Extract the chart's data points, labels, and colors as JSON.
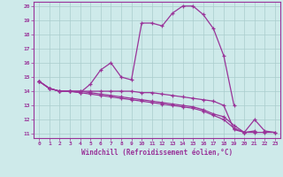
{
  "xlabel": "Windchill (Refroidissement éolien,°C)",
  "background_color": "#ceeaea",
  "grid_color": "#aacccc",
  "line_color": "#993399",
  "xlim": [
    -0.5,
    23.5
  ],
  "ylim": [
    10.7,
    20.3
  ],
  "xticks": [
    0,
    1,
    2,
    3,
    4,
    5,
    6,
    7,
    8,
    9,
    10,
    11,
    12,
    13,
    14,
    15,
    16,
    17,
    18,
    19,
    20,
    21,
    22,
    23
  ],
  "yticks": [
    11,
    12,
    13,
    14,
    15,
    16,
    17,
    18,
    19,
    20
  ],
  "series": [
    {
      "x": [
        0,
        1,
        2,
        3,
        4,
        5,
        6,
        7,
        8,
        9,
        10,
        11,
        12,
        13,
        14,
        15,
        16,
        17,
        18,
        19,
        20,
        21,
        22,
        23
      ],
      "y": [
        14.7,
        14.2,
        14.0,
        14.0,
        13.9,
        14.5,
        15.5,
        16.0,
        15.0,
        14.8,
        18.8,
        18.8,
        18.6,
        19.5,
        20.0,
        20.0,
        19.4,
        18.4,
        16.5,
        13.0,
        null,
        null,
        null,
        null
      ]
    },
    {
      "x": [
        0,
        1,
        2,
        3,
        4,
        5,
        6,
        7,
        8,
        9,
        10,
        11,
        12,
        13,
        14,
        15,
        16,
        17,
        18,
        19,
        20,
        21,
        22,
        23
      ],
      "y": [
        14.7,
        14.2,
        14.0,
        14.0,
        14.0,
        14.0,
        14.0,
        14.0,
        14.0,
        14.0,
        13.9,
        13.9,
        13.8,
        13.7,
        13.6,
        13.5,
        13.4,
        13.3,
        13.0,
        11.3,
        11.1,
        11.2,
        null,
        null
      ]
    },
    {
      "x": [
        0,
        1,
        2,
        3,
        4,
        5,
        6,
        7,
        8,
        9,
        10,
        11,
        12,
        13,
        14,
        15,
        16,
        17,
        18,
        19,
        20,
        21,
        22,
        23
      ],
      "y": [
        14.7,
        14.2,
        14.0,
        14.0,
        14.0,
        13.9,
        13.8,
        13.7,
        13.6,
        13.5,
        13.4,
        13.3,
        13.2,
        13.1,
        13.0,
        12.9,
        12.7,
        12.4,
        12.2,
        11.6,
        11.1,
        12.0,
        11.2,
        11.1
      ]
    },
    {
      "x": [
        0,
        1,
        2,
        3,
        4,
        5,
        6,
        7,
        8,
        9,
        10,
        11,
        12,
        13,
        14,
        15,
        16,
        17,
        18,
        19,
        20,
        21,
        22,
        23
      ],
      "y": [
        14.7,
        14.2,
        14.0,
        14.0,
        13.9,
        13.8,
        13.7,
        13.6,
        13.5,
        13.4,
        13.3,
        13.2,
        13.1,
        13.0,
        12.9,
        12.8,
        12.6,
        12.3,
        12.0,
        11.4,
        11.1,
        11.1,
        11.1,
        11.1
      ]
    }
  ]
}
